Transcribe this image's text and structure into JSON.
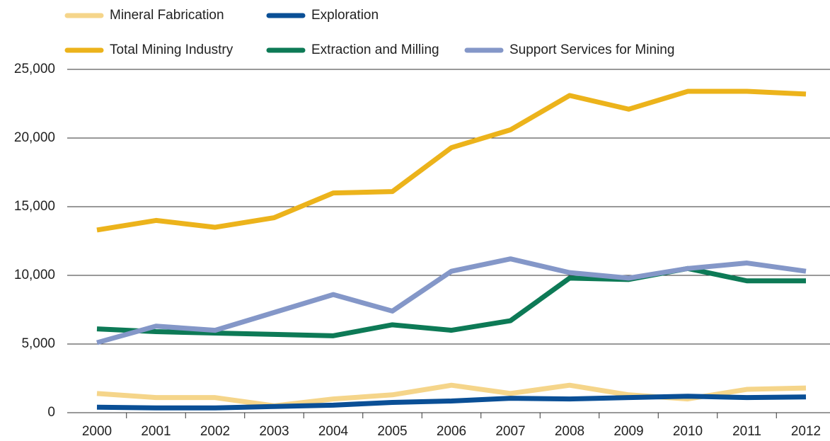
{
  "chart_data": {
    "type": "line",
    "categories": [
      "2000",
      "2001",
      "2002",
      "2003",
      "2004",
      "2005",
      "2006",
      "2007",
      "2008",
      "2009",
      "2010",
      "2011",
      "2012"
    ],
    "series": [
      {
        "name": "Mineral Fabrication",
        "color": "#f5d58a",
        "values": [
          1400,
          1100,
          1100,
          500,
          1000,
          1300,
          2000,
          1400,
          2000,
          1300,
          1000,
          1700,
          1800
        ]
      },
      {
        "name": "Exploration",
        "color": "#0a4f96",
        "values": [
          400,
          350,
          350,
          450,
          550,
          750,
          850,
          1050,
          1000,
          1100,
          1200,
          1100,
          1150
        ]
      },
      {
        "name": "Total Mining Industry",
        "color": "#ecb31b",
        "values": [
          13300,
          14000,
          13500,
          14200,
          16000,
          16100,
          19300,
          20600,
          23100,
          22100,
          23400,
          23400,
          23200
        ]
      },
      {
        "name": "Extraction and Milling",
        "color": "#0d7a56",
        "values": [
          6100,
          5900,
          5800,
          5700,
          5600,
          6400,
          6000,
          6700,
          9800,
          9700,
          10500,
          9600,
          9600
        ]
      },
      {
        "name": "Support Services for Mining",
        "color": "#8497c8",
        "values": [
          5100,
          6300,
          6000,
          7300,
          8600,
          7400,
          10300,
          11200,
          10200,
          9800,
          10500,
          10900,
          10300
        ]
      }
    ],
    "ylim": [
      0,
      25000
    ],
    "yticks": [
      0,
      {
        "value": 5000,
        "label": "5,000"
      },
      {
        "value": 10000,
        "label": "10,000"
      },
      {
        "value": 15000,
        "label": "15,000"
      },
      {
        "value": 20000,
        "label": "20,000"
      },
      {
        "value": 25000,
        "label": "25,000"
      }
    ],
    "grid": true,
    "legend": "top-left"
  }
}
